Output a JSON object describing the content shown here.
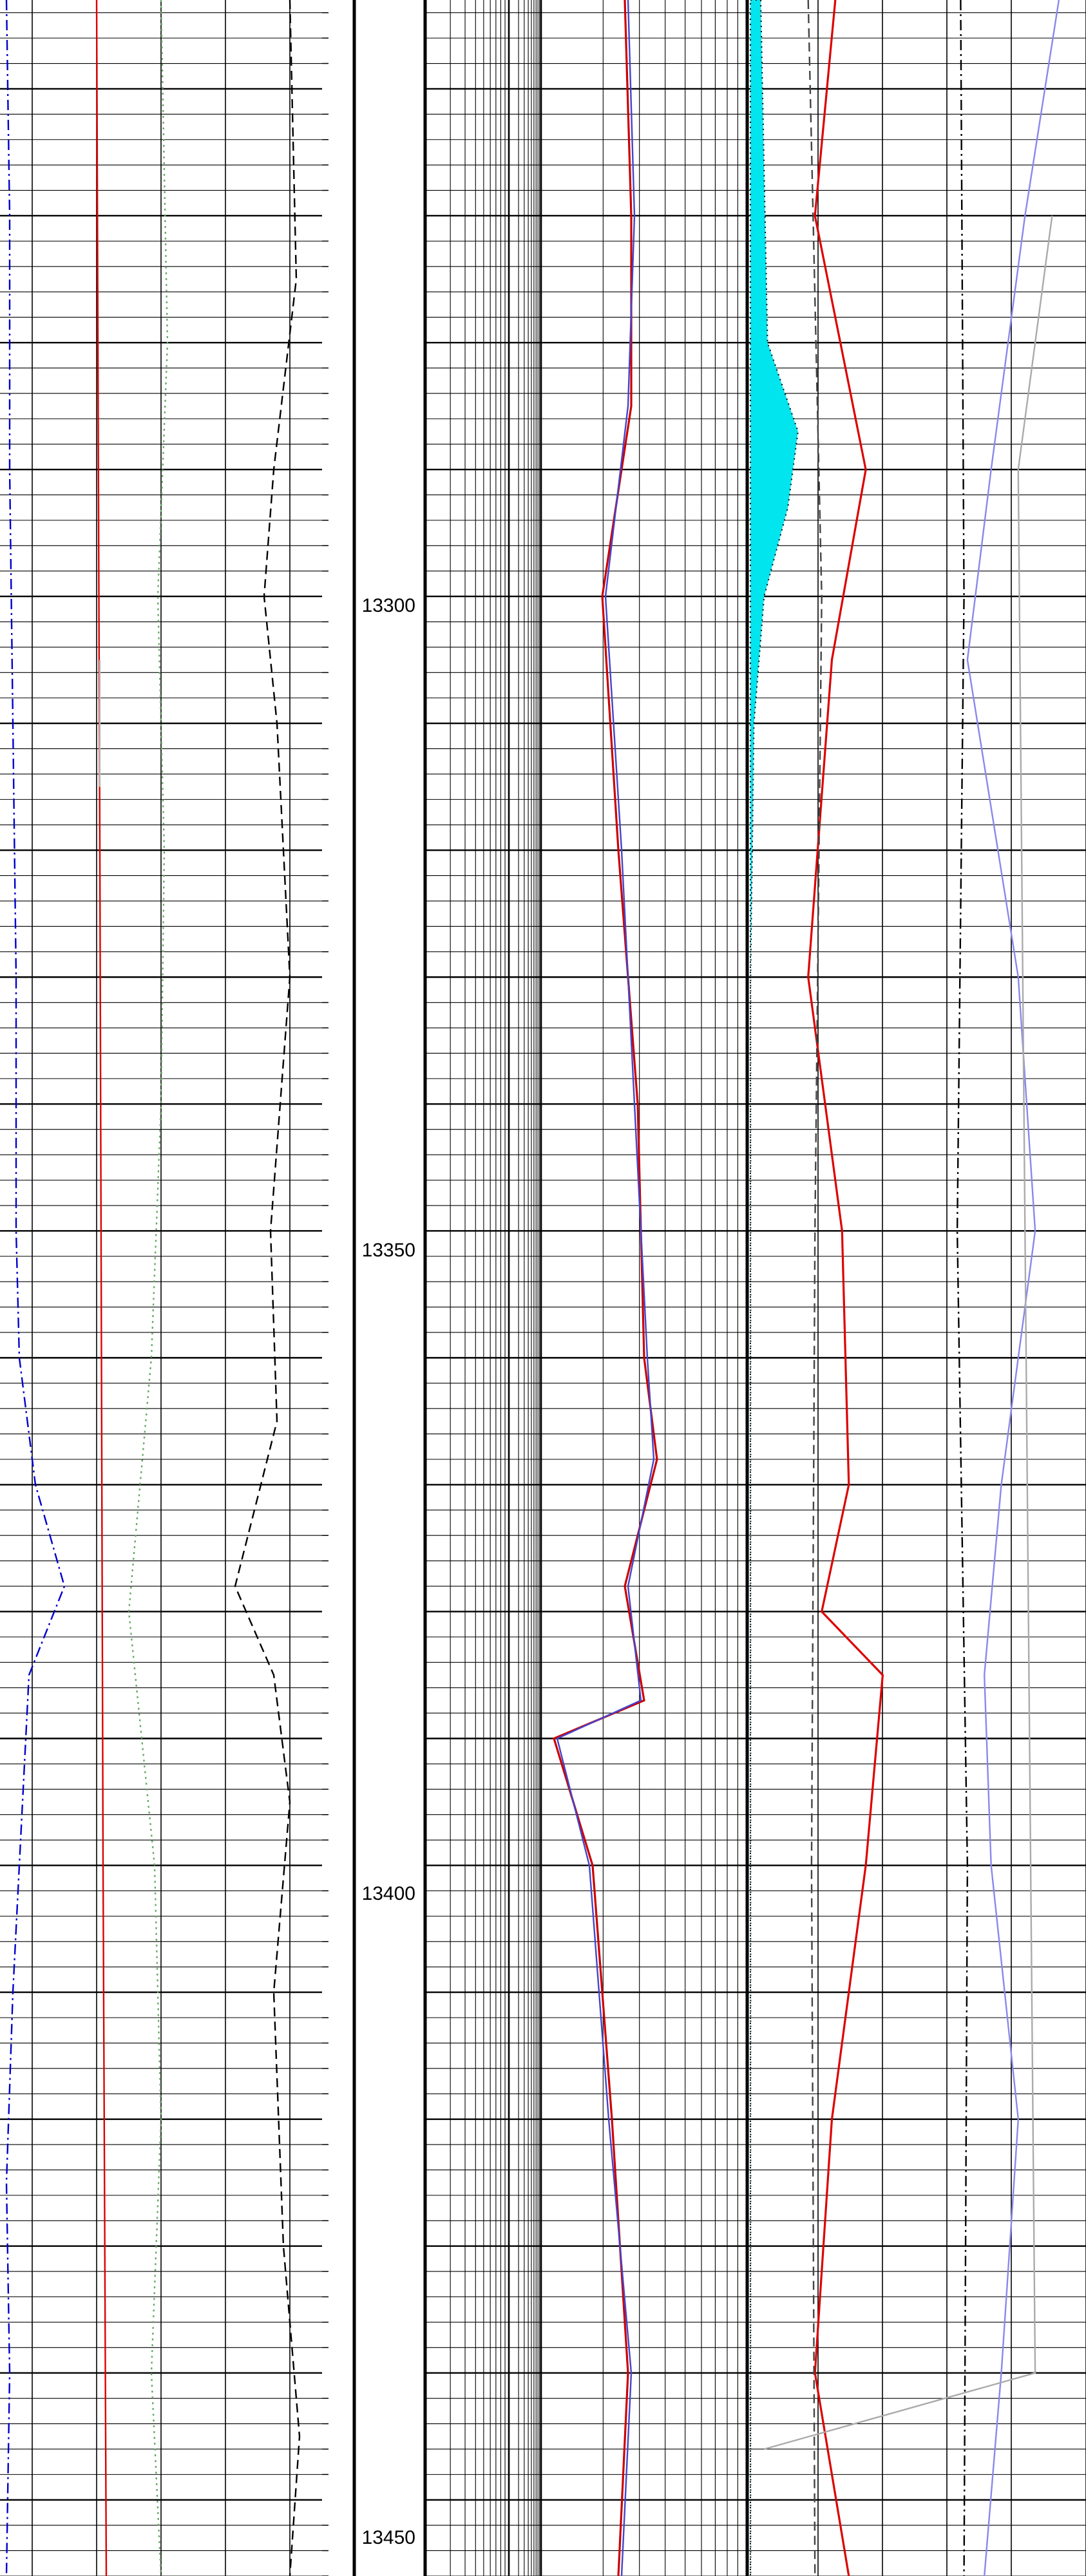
{
  "chart_data": {
    "type": "line",
    "title": "",
    "depth_axis": {
      "ylim": [
        13253,
        13456
      ],
      "tick_labels": [
        "13300",
        "13350",
        "13400",
        "13450"
      ],
      "tick_values": [
        13300,
        13350,
        13400,
        13450
      ]
    },
    "grid": true,
    "series": [
      {
        "color": "#0000cc",
        "dash": "dashdot",
        "values": [
          [
            13253,
            0.02
          ],
          [
            13270,
            0.03
          ],
          [
            13290,
            0.03
          ],
          [
            13310,
            0.04
          ],
          [
            13330,
            0.05
          ],
          [
            13350,
            0.05
          ],
          [
            13360,
            0.06
          ],
          [
            13370,
            0.11
          ],
          [
            13378,
            0.2
          ],
          [
            13385,
            0.09
          ],
          [
            13395,
            0.07
          ],
          [
            13410,
            0.04
          ],
          [
            13425,
            0.02
          ],
          [
            13440,
            0.03
          ],
          [
            13456,
            0.02
          ]
        ]
      },
      {
        "color": "#dd0000",
        "dash": "solid",
        "values": [
          [
            13253,
            0.3
          ],
          [
            13320,
            0.31
          ],
          [
            13400,
            0.32
          ],
          [
            13456,
            0.33
          ]
        ]
      },
      {
        "color": "#bbbbbb",
        "dash": "solid",
        "values": [
          [
            13305,
            0.31
          ],
          [
            13315,
            0.31
          ]
        ]
      },
      {
        "color": "#66aa66",
        "dash": "dot",
        "values": [
          [
            13253,
            0.5
          ],
          [
            13280,
            0.52
          ],
          [
            13300,
            0.49
          ],
          [
            13320,
            0.51
          ],
          [
            13340,
            0.5
          ],
          [
            13360,
            0.47
          ],
          [
            13380,
            0.4
          ],
          [
            13400,
            0.48
          ],
          [
            13420,
            0.5
          ],
          [
            13440,
            0.47
          ],
          [
            13456,
            0.5
          ]
        ]
      },
      {
        "color": "#000000",
        "dash": "dash",
        "values": [
          [
            13253,
            0.9
          ],
          [
            13275,
            0.92
          ],
          [
            13290,
            0.85
          ],
          [
            13300,
            0.82
          ],
          [
            13310,
            0.86
          ],
          [
            13330,
            0.9
          ],
          [
            13350,
            0.84
          ],
          [
            13365,
            0.86
          ],
          [
            13378,
            0.73
          ],
          [
            13385,
            0.85
          ],
          [
            13395,
            0.9
          ],
          [
            13410,
            0.85
          ],
          [
            13430,
            0.88
          ],
          [
            13445,
            0.93
          ],
          [
            13456,
            0.9
          ]
        ]
      },
      {
        "color": "#cc0000",
        "dash": "solid",
        "values": [
          [
            13253,
            0.62
          ],
          [
            13270,
            0.64
          ],
          [
            13285,
            0.64
          ],
          [
            13300,
            0.55
          ],
          [
            13320,
            0.6
          ],
          [
            13340,
            0.66
          ],
          [
            13360,
            0.68
          ],
          [
            13368,
            0.72
          ],
          [
            13378,
            0.62
          ],
          [
            13387,
            0.68
          ],
          [
            13390,
            0.4
          ],
          [
            13400,
            0.52
          ],
          [
            13420,
            0.58
          ],
          [
            13440,
            0.63
          ],
          [
            13456,
            0.6
          ]
        ]
      },
      {
        "color": "#4444cc",
        "dash": "solid",
        "values": [
          [
            13253,
            0.63
          ],
          [
            13270,
            0.65
          ],
          [
            13285,
            0.63
          ],
          [
            13300,
            0.56
          ],
          [
            13320,
            0.61
          ],
          [
            13340,
            0.65
          ],
          [
            13360,
            0.69
          ],
          [
            13368,
            0.71
          ],
          [
            13378,
            0.63
          ],
          [
            13387,
            0.67
          ],
          [
            13390,
            0.41
          ],
          [
            13400,
            0.51
          ],
          [
            13420,
            0.57
          ],
          [
            13440,
            0.64
          ],
          [
            13456,
            0.61
          ]
        ]
      },
      {
        "color": "#00e5ee",
        "dash": "fill",
        "values": [
          [
            13253,
            0.04
          ],
          [
            13280,
            0.06
          ],
          [
            13287,
            0.15
          ],
          [
            13293,
            0.12
          ],
          [
            13300,
            0.05
          ],
          [
            13310,
            0.02
          ],
          [
            13330,
            0.01
          ],
          [
            13456,
            0.01
          ]
        ]
      },
      {
        "color": "#8888ee",
        "dash": "solid",
        "values": [
          [
            13253,
            0.92
          ],
          [
            13270,
            0.82
          ],
          [
            13290,
            0.72
          ],
          [
            13305,
            0.65
          ],
          [
            13330,
            0.8
          ],
          [
            13350,
            0.85
          ],
          [
            13370,
            0.75
          ],
          [
            13385,
            0.7
          ],
          [
            13400,
            0.72
          ],
          [
            13420,
            0.8
          ],
          [
            13440,
            0.75
          ],
          [
            13456,
            0.7
          ]
        ]
      },
      {
        "color": "#dd0000",
        "dash": "solid",
        "values": [
          [
            13253,
            0.26
          ],
          [
            13270,
            0.2
          ],
          [
            13290,
            0.35
          ],
          [
            13305,
            0.25
          ],
          [
            13330,
            0.18
          ],
          [
            13350,
            0.28
          ],
          [
            13370,
            0.3
          ],
          [
            13380,
            0.22
          ],
          [
            13385,
            0.4
          ],
          [
            13400,
            0.35
          ],
          [
            13420,
            0.25
          ],
          [
            13440,
            0.2
          ],
          [
            13456,
            0.3
          ]
        ]
      },
      {
        "color": "#aaaaaa",
        "dash": "solid",
        "values": [
          [
            13270,
            0.9
          ],
          [
            13290,
            0.8
          ],
          [
            13440,
            0.85
          ],
          [
            13446,
            0.05
          ]
        ]
      },
      {
        "color": "#000000",
        "dash": "dashdot",
        "values": [
          [
            13253,
            0.63
          ],
          [
            13300,
            0.64
          ],
          [
            13350,
            0.62
          ],
          [
            13400,
            0.65
          ],
          [
            13456,
            0.64
          ]
        ]
      },
      {
        "color": "#444444",
        "dash": "dash",
        "values": [
          [
            13253,
            0.18
          ],
          [
            13300,
            0.22
          ],
          [
            13350,
            0.2
          ],
          [
            13400,
            0.19
          ],
          [
            13456,
            0.2
          ]
        ]
      }
    ]
  }
}
